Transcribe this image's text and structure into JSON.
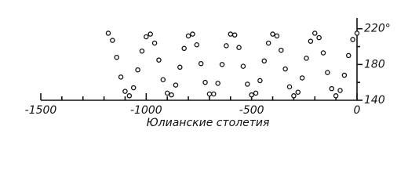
{
  "chart_data": {
    "type": "scatter",
    "x_label": "Юлианские столетия",
    "x": [
      -1180,
      -1160,
      -1140,
      -1120,
      -1100,
      -1080,
      -1060,
      -1040,
      -1020,
      -1000,
      -980,
      -960,
      -940,
      -920,
      -900,
      -880,
      -860,
      -840,
      -820,
      -800,
      -780,
      -760,
      -740,
      -720,
      -700,
      -680,
      -660,
      -640,
      -620,
      -600,
      -580,
      -560,
      -540,
      -520,
      -500,
      -480,
      -460,
      -440,
      -420,
      -400,
      -380,
      -360,
      -340,
      -320,
      -300,
      -280,
      -260,
      -240,
      -220,
      -200,
      -180,
      -160,
      -140,
      -120,
      -100,
      -80,
      -60,
      -40,
      -20,
      0
    ],
    "values": [
      215,
      207,
      188,
      166,
      150,
      145,
      154,
      174,
      195,
      211,
      214,
      204,
      185,
      163,
      148,
      146,
      157,
      177,
      198,
      212,
      214,
      202,
      181,
      160,
      147,
      147,
      159,
      180,
      201,
      214,
      213,
      199,
      178,
      158,
      146,
      148,
      162,
      184,
      204,
      214,
      212,
      196,
      175,
      155,
      145,
      149,
      165,
      187,
      206,
      215,
      210,
      193,
      171,
      153,
      145,
      151,
      168,
      190,
      208,
      215
    ],
    "color": "#111111",
    "xlim": [
      -1500,
      0
    ],
    "xticks": [
      -1500,
      -1000,
      -500,
      0
    ],
    "xminorticks": [
      -1400,
      -1300,
      -1200,
      -1100,
      -900,
      -800,
      -700,
      -600,
      -400,
      -300,
      -200,
      -100
    ],
    "ylim": [
      140,
      232
    ],
    "yticks": [
      140,
      180,
      {
        "value": 220,
        "label": "220°"
      }
    ],
    "yminorticks": [
      160,
      200
    ],
    "y_axis_side": "right",
    "grid": false
  }
}
